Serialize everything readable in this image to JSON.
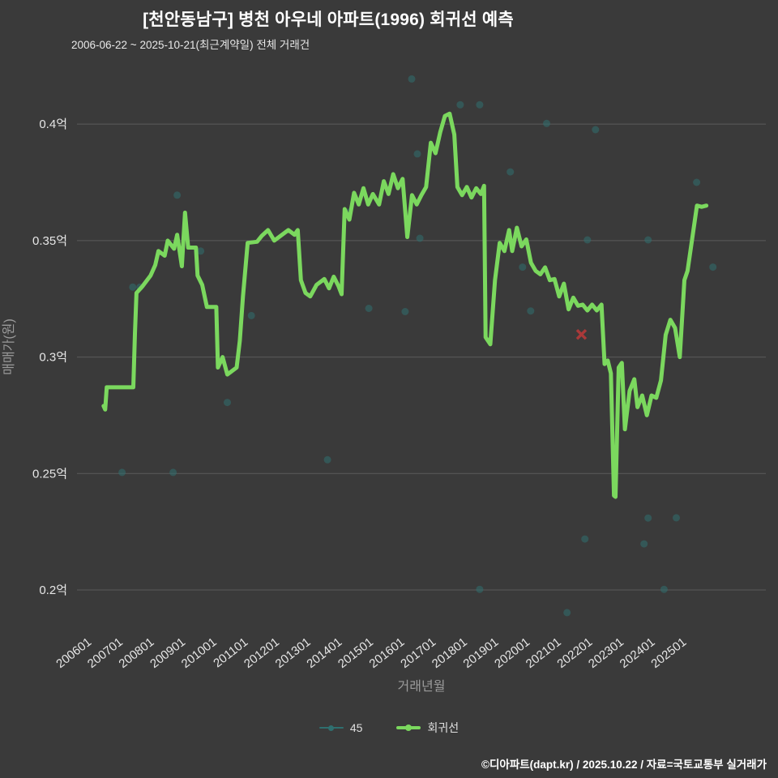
{
  "header": {
    "title": "[천안동남구] 병천 아우네 아파트(1996) 회귀선 예측",
    "subtitle": "2006-06-22 ~ 2025-10-21(최근계약일) 전체 거래건"
  },
  "footer": {
    "credit": "©디아파트(dapt.kr) / 2025.10.22 / 자료=국토교통부 실거래가"
  },
  "legend": [
    {
      "label": "45",
      "color": "#2f6f6f",
      "line_width": 2,
      "dot_size": 7
    },
    {
      "label": "회귀선",
      "color": "#7bd85e",
      "line_width": 4,
      "dot_size": 8
    }
  ],
  "colors": {
    "background": "#3a3a3a",
    "grid": "#5a5a5a",
    "tick_label": "#e6e6e6",
    "axis_title": "#9b9b9b",
    "title_text": "#ffffff",
    "scatter": "#2f6f6f",
    "regression": "#7bd85e",
    "outlier_x": "#a93939"
  },
  "chart_data": {
    "type": "line",
    "title": "[천안동남구] 병천 아우네 아파트(1996) 회귀선 예측",
    "subtitle": "2006-06-22 ~ 2025-10-21(최근계약일) 전체 거래건",
    "xlabel": "거래년월",
    "ylabel": "매매가(원)",
    "x_range": [
      2005.6,
      2027.6
    ],
    "y_range": [
      0.1854,
      0.4237
    ],
    "grid": "horizontal-only",
    "legend_position": "bottom-center",
    "y_ticks": [
      {
        "v": 0.4,
        "label": "0.4억"
      },
      {
        "v": 0.35,
        "label": "0.35억"
      },
      {
        "v": 0.3,
        "label": "0.3억"
      },
      {
        "v": 0.25,
        "label": "0.25억"
      },
      {
        "v": 0.2,
        "label": "0.2억"
      }
    ],
    "x_ticks": [
      {
        "v": 2006.083,
        "label": "200601"
      },
      {
        "v": 2007.083,
        "label": "200701"
      },
      {
        "v": 2008.083,
        "label": "200801"
      },
      {
        "v": 2009.083,
        "label": "200901"
      },
      {
        "v": 2010.083,
        "label": "201001"
      },
      {
        "v": 2011.083,
        "label": "201101"
      },
      {
        "v": 2012.083,
        "label": "201201"
      },
      {
        "v": 2013.083,
        "label": "201301"
      },
      {
        "v": 2014.083,
        "label": "201401"
      },
      {
        "v": 2015.083,
        "label": "201501"
      },
      {
        "v": 2016.083,
        "label": "201601"
      },
      {
        "v": 2017.083,
        "label": "201701"
      },
      {
        "v": 2018.083,
        "label": "201801"
      },
      {
        "v": 2019.083,
        "label": "201901"
      },
      {
        "v": 2020.083,
        "label": "202001"
      },
      {
        "v": 2021.083,
        "label": "202101"
      },
      {
        "v": 2022.083,
        "label": "202201"
      },
      {
        "v": 2023.083,
        "label": "202301"
      },
      {
        "v": 2024.083,
        "label": "202401"
      },
      {
        "v": 2025.083,
        "label": "202501"
      }
    ],
    "series": [
      {
        "name": "45",
        "type": "scatter",
        "color": "#2f6f6f",
        "opacity": 0.55,
        "points": [
          [
            2007.04,
            0.2505
          ],
          [
            2007.38,
            0.33
          ],
          [
            2007.61,
            0.33
          ],
          [
            2008.67,
            0.2505
          ],
          [
            2008.8,
            0.3695
          ],
          [
            2009.55,
            0.3455
          ],
          [
            2010.4,
            0.2805
          ],
          [
            2011.17,
            0.3178
          ],
          [
            2013.6,
            0.2559
          ],
          [
            2014.27,
            0.3622
          ],
          [
            2014.92,
            0.3209
          ],
          [
            2016.08,
            0.3195
          ],
          [
            2016.29,
            0.4194
          ],
          [
            2016.47,
            0.3872
          ],
          [
            2016.55,
            0.351
          ],
          [
            2017.84,
            0.4083
          ],
          [
            2018.46,
            0.4083
          ],
          [
            2018.46,
            0.2003
          ],
          [
            2019.44,
            0.3795
          ],
          [
            2019.83,
            0.3386
          ],
          [
            2020.09,
            0.3198
          ],
          [
            2020.6,
            0.4003
          ],
          [
            2021.25,
            0.1903
          ],
          [
            2021.82,
            0.2219
          ],
          [
            2021.9,
            0.3503
          ],
          [
            2022.16,
            0.3976
          ],
          [
            2023.71,
            0.2198
          ],
          [
            2023.84,
            0.3503
          ],
          [
            2023.84,
            0.2309
          ],
          [
            2024.35,
            0.2003
          ],
          [
            2024.74,
            0.231
          ],
          [
            2025.39,
            0.375
          ],
          [
            2025.91,
            0.3386
          ]
        ]
      },
      {
        "name": "회귀선",
        "type": "line",
        "color": "#7bd85e",
        "width": 5,
        "points": [
          [
            2006.45,
            0.279
          ],
          [
            2006.5,
            0.2775
          ],
          [
            2006.55,
            0.287
          ],
          [
            2007.4,
            0.287
          ],
          [
            2007.45,
            0.31
          ],
          [
            2007.5,
            0.3275
          ],
          [
            2007.7,
            0.3305
          ],
          [
            2007.95,
            0.335
          ],
          [
            2008.1,
            0.3395
          ],
          [
            2008.2,
            0.3455
          ],
          [
            2008.4,
            0.3435
          ],
          [
            2008.5,
            0.35
          ],
          [
            2008.7,
            0.3465
          ],
          [
            2008.8,
            0.3525
          ],
          [
            2008.95,
            0.339
          ],
          [
            2009.05,
            0.362
          ],
          [
            2009.15,
            0.347
          ],
          [
            2009.4,
            0.347
          ],
          [
            2009.45,
            0.335
          ],
          [
            2009.6,
            0.331
          ],
          [
            2009.75,
            0.3215
          ],
          [
            2010.05,
            0.3215
          ],
          [
            2010.1,
            0.2955
          ],
          [
            2010.25,
            0.3
          ],
          [
            2010.4,
            0.2925
          ],
          [
            2010.7,
            0.2955
          ],
          [
            2010.8,
            0.307
          ],
          [
            2010.9,
            0.326
          ],
          [
            2011.05,
            0.349
          ],
          [
            2011.35,
            0.3495
          ],
          [
            2011.5,
            0.352
          ],
          [
            2011.7,
            0.3545
          ],
          [
            2011.9,
            0.35
          ],
          [
            2012.1,
            0.352
          ],
          [
            2012.35,
            0.3545
          ],
          [
            2012.55,
            0.3525
          ],
          [
            2012.65,
            0.3545
          ],
          [
            2012.75,
            0.333
          ],
          [
            2012.9,
            0.3275
          ],
          [
            2013.05,
            0.326
          ],
          [
            2013.25,
            0.331
          ],
          [
            2013.5,
            0.3335
          ],
          [
            2013.65,
            0.3295
          ],
          [
            2013.8,
            0.3345
          ],
          [
            2013.95,
            0.3305
          ],
          [
            2014.05,
            0.327
          ],
          [
            2014.15,
            0.3635
          ],
          [
            2014.3,
            0.359
          ],
          [
            2014.45,
            0.3705
          ],
          [
            2014.6,
            0.3655
          ],
          [
            2014.75,
            0.3725
          ],
          [
            2014.9,
            0.3655
          ],
          [
            2015.05,
            0.37
          ],
          [
            2015.25,
            0.3655
          ],
          [
            2015.4,
            0.3755
          ],
          [
            2015.55,
            0.37
          ],
          [
            2015.7,
            0.3785
          ],
          [
            2015.85,
            0.3725
          ],
          [
            2016.0,
            0.3765
          ],
          [
            2016.15,
            0.3515
          ],
          [
            2016.3,
            0.3695
          ],
          [
            2016.45,
            0.3655
          ],
          [
            2016.6,
            0.3695
          ],
          [
            2016.75,
            0.373
          ],
          [
            2016.9,
            0.392
          ],
          [
            2017.05,
            0.3875
          ],
          [
            2017.2,
            0.3965
          ],
          [
            2017.35,
            0.4035
          ],
          [
            2017.5,
            0.4045
          ],
          [
            2017.65,
            0.3955
          ],
          [
            2017.75,
            0.373
          ],
          [
            2017.9,
            0.3695
          ],
          [
            2018.05,
            0.373
          ],
          [
            2018.2,
            0.3685
          ],
          [
            2018.35,
            0.3725
          ],
          [
            2018.5,
            0.37
          ],
          [
            2018.6,
            0.3735
          ],
          [
            2018.65,
            0.3085
          ],
          [
            2018.8,
            0.3055
          ],
          [
            2018.95,
            0.333
          ],
          [
            2019.1,
            0.349
          ],
          [
            2019.25,
            0.3455
          ],
          [
            2019.4,
            0.3545
          ],
          [
            2019.5,
            0.3455
          ],
          [
            2019.65,
            0.3555
          ],
          [
            2019.8,
            0.3475
          ],
          [
            2019.95,
            0.3505
          ],
          [
            2020.1,
            0.3405
          ],
          [
            2020.25,
            0.337
          ],
          [
            2020.4,
            0.3355
          ],
          [
            2020.55,
            0.3385
          ],
          [
            2020.7,
            0.333
          ],
          [
            2020.85,
            0.3335
          ],
          [
            2021.0,
            0.326
          ],
          [
            2021.15,
            0.3315
          ],
          [
            2021.3,
            0.3205
          ],
          [
            2021.45,
            0.3255
          ],
          [
            2021.6,
            0.322
          ],
          [
            2021.75,
            0.3225
          ],
          [
            2021.9,
            0.32
          ],
          [
            2022.05,
            0.3225
          ],
          [
            2022.2,
            0.32
          ],
          [
            2022.35,
            0.3225
          ],
          [
            2022.45,
            0.297
          ],
          [
            2022.55,
            0.2985
          ],
          [
            2022.65,
            0.293
          ],
          [
            2022.75,
            0.2405
          ],
          [
            2022.8,
            0.24
          ],
          [
            2022.9,
            0.2955
          ],
          [
            2023.0,
            0.2975
          ],
          [
            2023.1,
            0.269
          ],
          [
            2023.25,
            0.2855
          ],
          [
            2023.4,
            0.2905
          ],
          [
            2023.5,
            0.2785
          ],
          [
            2023.65,
            0.2835
          ],
          [
            2023.8,
            0.275
          ],
          [
            2023.95,
            0.2835
          ],
          [
            2024.1,
            0.2825
          ],
          [
            2024.25,
            0.29
          ],
          [
            2024.4,
            0.3095
          ],
          [
            2024.55,
            0.316
          ],
          [
            2024.7,
            0.3125
          ],
          [
            2024.85,
            0.3
          ],
          [
            2025.0,
            0.333
          ],
          [
            2025.1,
            0.337
          ],
          [
            2025.25,
            0.351
          ],
          [
            2025.4,
            0.365
          ],
          [
            2025.55,
            0.3645
          ],
          [
            2025.7,
            0.365
          ]
        ]
      },
      {
        "name": "outlier",
        "type": "marker-x",
        "color": "#a93939",
        "points": [
          [
            2021.71,
            0.3097
          ]
        ]
      }
    ]
  }
}
